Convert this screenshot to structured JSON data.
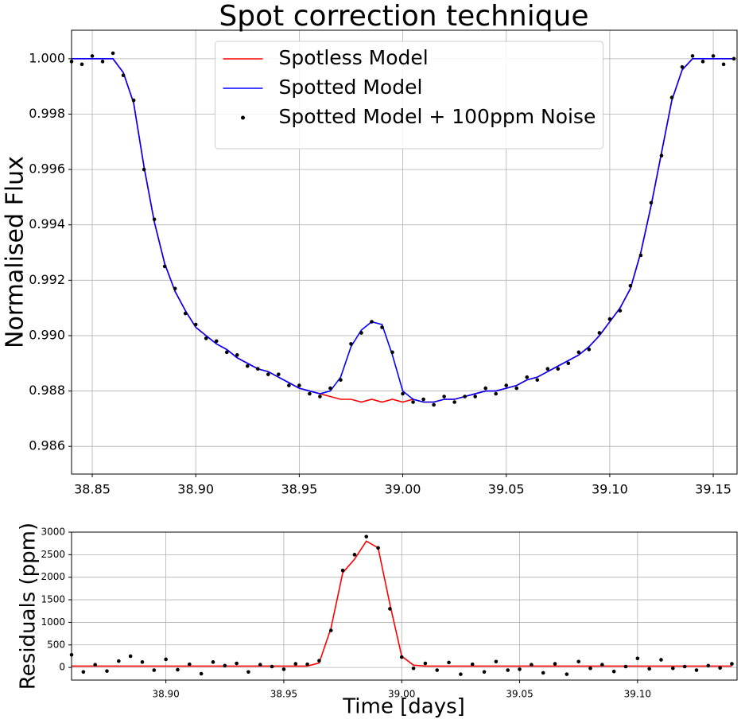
{
  "chart_data": [
    {
      "type": "line",
      "title": "Spot correction technique",
      "y_label": "Normalised Flux",
      "legend": "upper center",
      "grid": true,
      "xlim": [
        38.84,
        39.1615
      ],
      "ylim": [
        0.985,
        1.00103
      ],
      "xticks": [
        38.85,
        {
          "value": 38.9,
          "label": "38.90"
        },
        38.95,
        {
          "value": 39,
          "label": "39.00"
        },
        39.05,
        {
          "value": 39.1,
          "label": "39.10"
        },
        39.15
      ],
      "yticks": [
        {
          "value": 0.986,
          "label": "0.986"
        },
        {
          "value": 0.988,
          "label": "0.988"
        },
        {
          "value": 0.99,
          "label": "0.990"
        },
        {
          "value": 0.992,
          "label": "0.992"
        },
        {
          "value": 0.994,
          "label": "0.994"
        },
        {
          "value": 0.996,
          "label": "0.996"
        },
        {
          "value": 0.998,
          "label": "0.998"
        },
        {
          "value": 1,
          "label": "1.000"
        }
      ],
      "x": [
        38.84,
        38.845,
        38.85,
        38.855,
        38.86,
        38.865,
        38.87,
        38.875,
        38.88,
        38.885,
        38.89,
        38.895,
        38.9,
        38.905,
        38.91,
        38.915,
        38.92,
        38.925,
        38.93,
        38.935,
        38.94,
        38.945,
        38.95,
        38.955,
        38.96,
        38.965,
        38.97,
        38.975,
        38.98,
        38.985,
        38.99,
        38.995,
        39.0,
        39.005,
        39.01,
        39.015,
        39.02,
        39.025,
        39.03,
        39.035,
        39.04,
        39.045,
        39.05,
        39.055,
        39.06,
        39.065,
        39.07,
        39.075,
        39.08,
        39.085,
        39.09,
        39.095,
        39.1,
        39.105,
        39.11,
        39.115,
        39.12,
        39.125,
        39.13,
        39.135,
        39.14,
        39.145,
        39.15,
        39.155,
        39.16
      ],
      "series": [
        {
          "name": "Spotless Model",
          "color": "#ff0000",
          "style": "line",
          "values": [
            1,
            1,
            1,
            1,
            1,
            0.9995,
            0.9984,
            0.9961,
            0.9941,
            0.9926,
            0.9916,
            0.9909,
            0.9903,
            0.99,
            0.9897,
            0.9895,
            0.9892,
            0.989,
            0.9888,
            0.9887,
            0.9885,
            0.9883,
            0.9881,
            0.988,
            0.9879,
            0.9878,
            0.9877,
            0.9877,
            0.9876,
            0.9877,
            0.9876,
            0.9877,
            0.9876,
            0.9877,
            0.9876,
            0.9876,
            0.9877,
            0.9877,
            0.9878,
            0.9879,
            0.988,
            0.988,
            0.9881,
            0.9882,
            0.9884,
            0.9885,
            0.9887,
            0.9889,
            0.9891,
            0.9893,
            0.9896,
            0.99,
            0.9905,
            0.991,
            0.9917,
            0.993,
            0.9947,
            0.9966,
            0.9985,
            0.9996,
            1,
            1,
            1,
            1,
            1
          ]
        },
        {
          "name": "Spotted Model",
          "color": "#0000ff",
          "style": "line",
          "values": [
            1,
            1,
            1,
            1,
            1,
            0.9995,
            0.9984,
            0.9961,
            0.9941,
            0.9926,
            0.9916,
            0.9909,
            0.9903,
            0.99,
            0.9897,
            0.9895,
            0.9892,
            0.989,
            0.9888,
            0.9887,
            0.9885,
            0.9883,
            0.9881,
            0.988,
            0.9879,
            0.988,
            0.9885,
            0.9896,
            0.9902,
            0.9905,
            0.9904,
            0.9893,
            0.988,
            0.9877,
            0.9876,
            0.9876,
            0.9877,
            0.9877,
            0.9878,
            0.9879,
            0.988,
            0.988,
            0.9881,
            0.9882,
            0.9884,
            0.9885,
            0.9887,
            0.9889,
            0.9891,
            0.9893,
            0.9896,
            0.99,
            0.9905,
            0.991,
            0.9917,
            0.993,
            0.9947,
            0.9966,
            0.9985,
            0.9996,
            1,
            1,
            1,
            1,
            1
          ]
        },
        {
          "name": "Spotted Model + 100ppm Noise",
          "color": "#000000",
          "style": "markers",
          "values": [
            0.9999,
            0.9998,
            1.0001,
            0.9999,
            1.0002,
            0.9994,
            0.9985,
            0.996,
            0.9942,
            0.9925,
            0.9917,
            0.9908,
            0.9904,
            0.9899,
            0.9898,
            0.9894,
            0.9893,
            0.9889,
            0.9888,
            0.9886,
            0.9886,
            0.9882,
            0.9882,
            0.9879,
            0.9878,
            0.9881,
            0.9884,
            0.9897,
            0.9901,
            0.9905,
            0.9903,
            0.9894,
            0.9879,
            0.9876,
            0.9877,
            0.9875,
            0.9878,
            0.9876,
            0.9878,
            0.9878,
            0.9881,
            0.9879,
            0.9882,
            0.9881,
            0.9885,
            0.9884,
            0.9888,
            0.9888,
            0.989,
            0.9894,
            0.9895,
            0.9901,
            0.9906,
            0.9909,
            0.9918,
            0.9929,
            0.9948,
            0.9965,
            0.9986,
            0.9997,
            1.0001,
            0.9999,
            1.0001,
            0.9998,
            1
          ]
        }
      ]
    },
    {
      "type": "line",
      "y_label": "Residuals (ppm)",
      "x_label": "Time [days]",
      "grid": true,
      "xlim": [
        38.86,
        39.1422
      ],
      "ylim": [
        -280,
        3000
      ],
      "xticks": [
        {
          "value": 38.9,
          "label": "38.90"
        },
        38.95,
        {
          "value": 39,
          "label": "39.00"
        },
        39.05,
        {
          "value": 39.1,
          "label": "39.10"
        }
      ],
      "yticks": [
        0,
        500,
        1000,
        1500,
        2000,
        2500,
        3000
      ],
      "x": [
        38.86,
        38.865,
        38.87,
        38.875,
        38.88,
        38.885,
        38.89,
        38.895,
        38.9,
        38.905,
        38.91,
        38.915,
        38.92,
        38.925,
        38.93,
        38.935,
        38.94,
        38.945,
        38.95,
        38.955,
        38.96,
        38.965,
        38.97,
        38.975,
        38.98,
        38.985,
        38.99,
        38.995,
        39.0,
        39.005,
        39.01,
        39.015,
        39.02,
        39.025,
        39.03,
        39.035,
        39.04,
        39.045,
        39.05,
        39.055,
        39.06,
        39.065,
        39.07,
        39.075,
        39.08,
        39.085,
        39.09,
        39.095,
        39.1,
        39.105,
        39.11,
        39.115,
        39.12,
        39.125,
        39.13,
        39.135,
        39.14
      ],
      "series": [
        {
          "color": "#ff0000",
          "style": "line",
          "values": [
            30,
            30,
            30,
            30,
            30,
            30,
            30,
            30,
            30,
            30,
            30,
            30,
            30,
            30,
            30,
            30,
            30,
            30,
            30,
            30,
            30,
            100,
            870,
            2100,
            2400,
            2800,
            2650,
            1400,
            250,
            50,
            30,
            30,
            30,
            30,
            30,
            30,
            30,
            30,
            30,
            30,
            30,
            30,
            30,
            30,
            30,
            30,
            30,
            30,
            30,
            30,
            30,
            30,
            30,
            30,
            30,
            30,
            30
          ]
        },
        {
          "color": "#000000",
          "style": "markers",
          "values": [
            280,
            -100,
            60,
            -80,
            140,
            250,
            120,
            -60,
            180,
            -50,
            70,
            -140,
            120,
            40,
            90,
            -100,
            60,
            20,
            -40,
            80,
            70,
            150,
            820,
            2150,
            2500,
            2900,
            2650,
            1300,
            230,
            -20,
            90,
            -60,
            110,
            -150,
            70,
            -100,
            130,
            -60,
            -40,
            60,
            -120,
            80,
            -150,
            130,
            -20,
            60,
            -90,
            20,
            200,
            -30,
            170,
            -20,
            20,
            -60,
            40,
            -10,
            80
          ]
        }
      ]
    }
  ]
}
